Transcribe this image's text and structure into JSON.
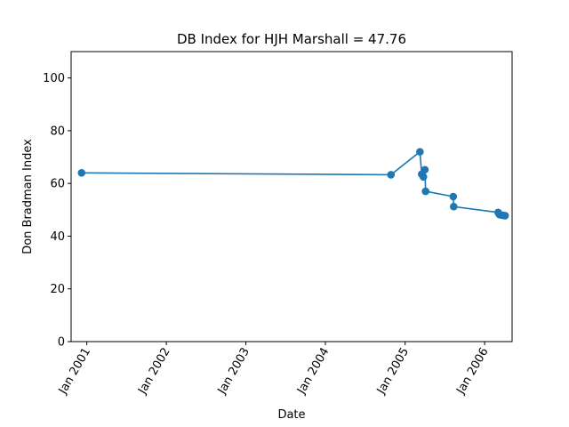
{
  "chart_data": {
    "type": "line",
    "title": "DB Index for HJH Marshall = 47.76",
    "xlabel": "Date",
    "ylabel": "Don Bradman Index",
    "x_ticks": [
      "Jan 2001",
      "Jan 2002",
      "Jan 2003",
      "Jan 2004",
      "Jan 2005",
      "Jan 2006"
    ],
    "y_ticks": [
      0,
      20,
      40,
      60,
      80,
      100
    ],
    "ylim": [
      0,
      110
    ],
    "xlim": [
      "2000-10-21",
      "2006-05-07"
    ],
    "grid": false,
    "series": [
      {
        "color": "#1f77b4",
        "marker": "circle",
        "points": [
          {
            "date": "2000-12-08",
            "value": 64.0
          },
          {
            "date": "2004-10-28",
            "value": 63.3
          },
          {
            "date": "2005-03-10",
            "value": 72.0
          },
          {
            "date": "2005-03-18",
            "value": 63.5
          },
          {
            "date": "2005-03-26",
            "value": 62.5
          },
          {
            "date": "2005-04-02",
            "value": 65.2
          },
          {
            "date": "2005-04-05",
            "value": 57.0
          },
          {
            "date": "2005-08-10",
            "value": 55.0
          },
          {
            "date": "2005-08-12",
            "value": 51.2
          },
          {
            "date": "2006-03-04",
            "value": 49.0
          },
          {
            "date": "2006-03-10",
            "value": 48.2
          },
          {
            "date": "2006-03-18",
            "value": 48.0
          },
          {
            "date": "2006-03-26",
            "value": 47.9
          },
          {
            "date": "2006-04-05",
            "value": 47.76
          }
        ]
      }
    ]
  }
}
